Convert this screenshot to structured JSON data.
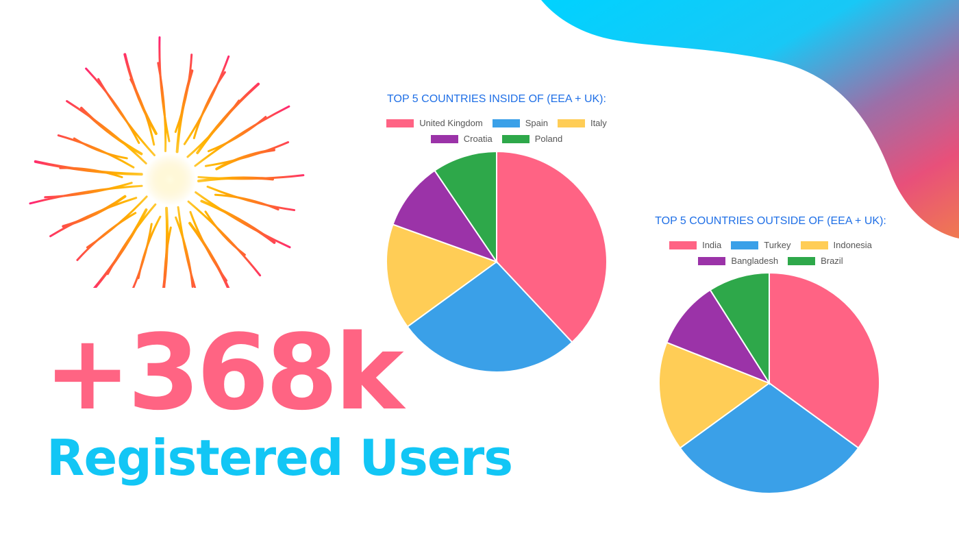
{
  "headline": {
    "number": "+368k",
    "label": "Registered Users"
  },
  "colors": {
    "accent_pink": "#ff6483",
    "accent_cyan": "#12c6f5",
    "title_blue": "#1f6fe6"
  },
  "decorations": {
    "background_wave": "cyan-to-pink-wave",
    "firework_icon": "firework-icon"
  },
  "chart_data": [
    {
      "type": "pie",
      "title": "TOP 5 COUNTRIES INSIDE OF (EEA + UK):",
      "legend_position": "top",
      "slices": [
        {
          "label": "United Kingdom",
          "value": 38,
          "color": "#ff6384"
        },
        {
          "label": "Spain",
          "value": 27,
          "color": "#3aa0e8"
        },
        {
          "label": "Italy",
          "value": 15.5,
          "color": "#ffcd56"
        },
        {
          "label": "Croatia",
          "value": 10,
          "color": "#9b33a8"
        },
        {
          "label": "Poland",
          "value": 9.5,
          "color": "#2ea84a"
        }
      ]
    },
    {
      "type": "pie",
      "title": "TOP 5 COUNTRIES OUTSIDE OF (EEA + UK):",
      "legend_position": "top",
      "slices": [
        {
          "label": "India",
          "value": 35,
          "color": "#ff6384"
        },
        {
          "label": "Turkey",
          "value": 30,
          "color": "#3aa0e8"
        },
        {
          "label": "Indonesia",
          "value": 16,
          "color": "#ffcd56"
        },
        {
          "label": "Bangladesh",
          "value": 10,
          "color": "#9b33a8"
        },
        {
          "label": "Brazil",
          "value": 9,
          "color": "#2ea84a"
        }
      ]
    }
  ]
}
